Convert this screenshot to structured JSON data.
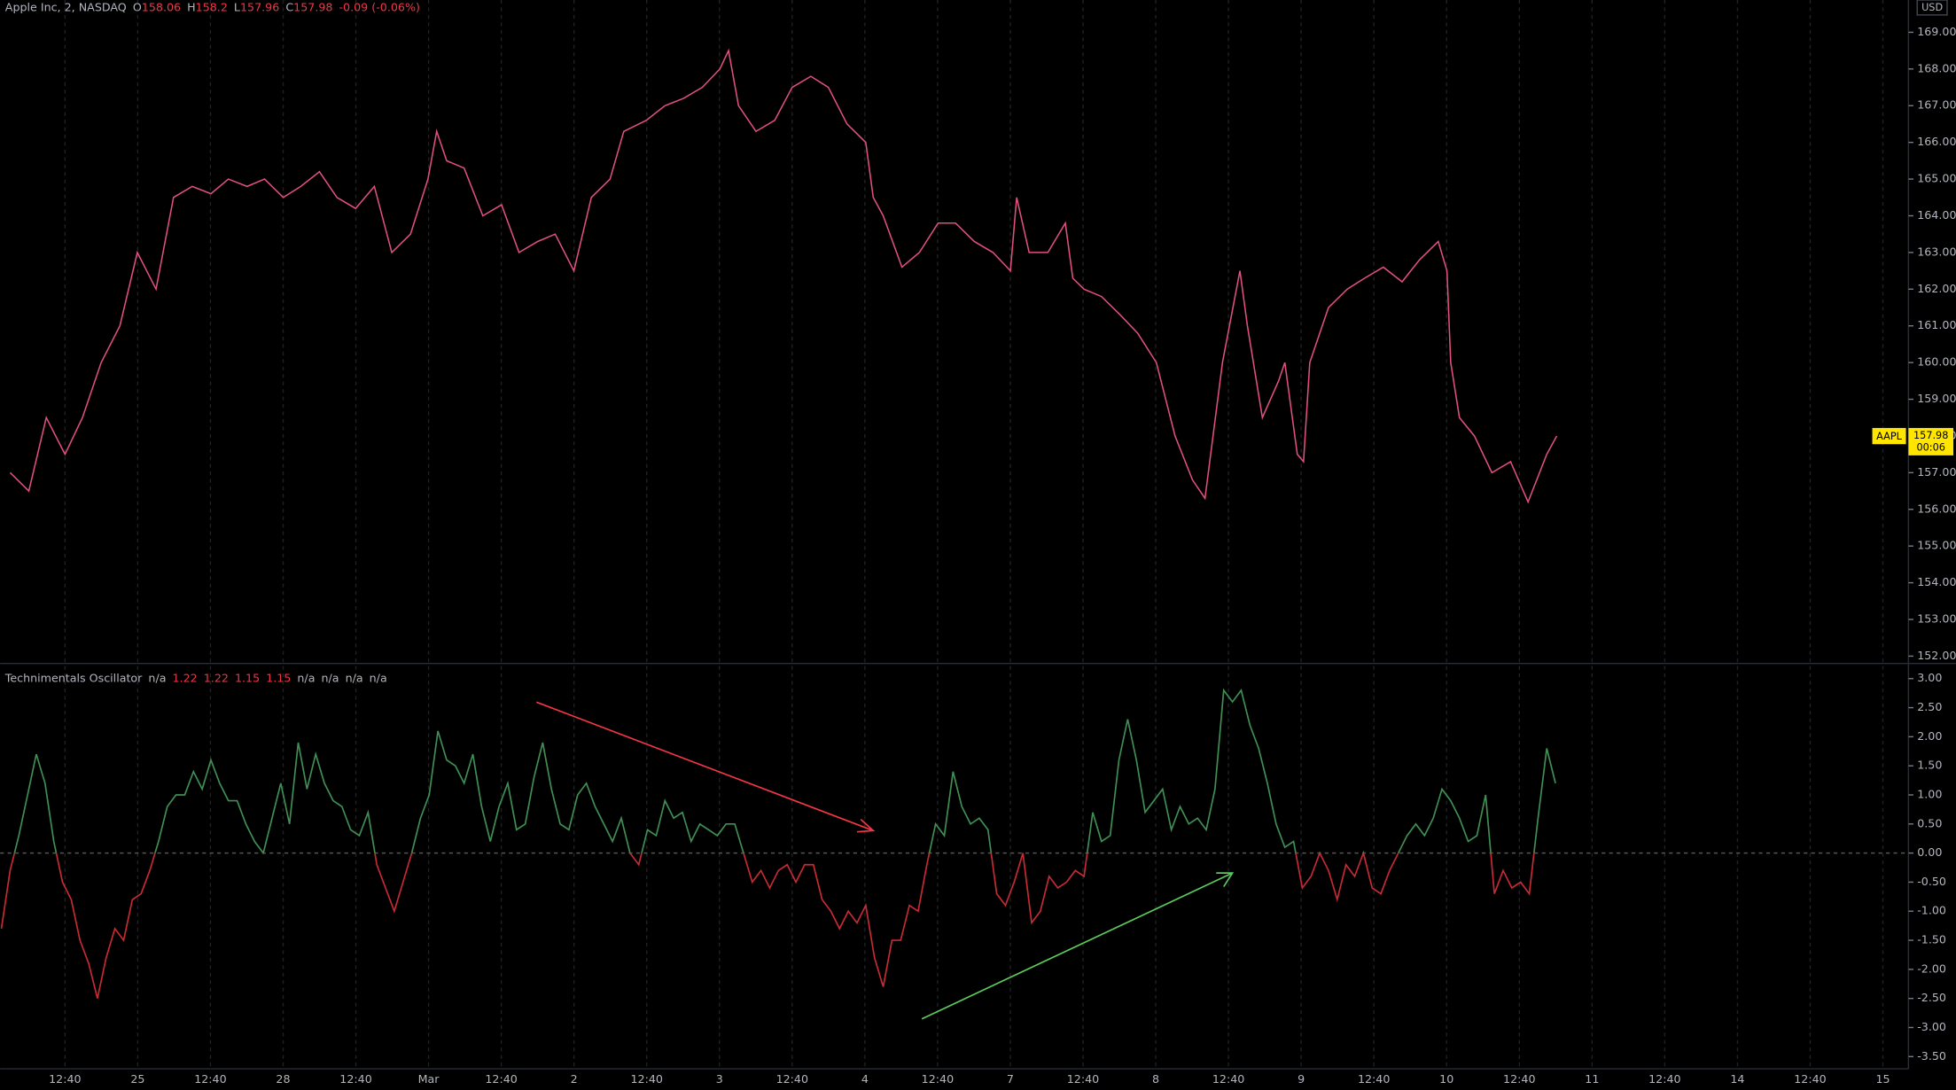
{
  "chart_data": [
    {
      "type": "line",
      "title": "Apple Inc, 2, NASDAQ",
      "ohlc": [
        {
          "label": "O",
          "value": 158.06
        },
        {
          "label": "H",
          "value": 158.2
        },
        {
          "label": "L",
          "value": 157.96
        },
        {
          "label": "C",
          "value": 157.98
        }
      ],
      "change": "-0.09 (-0.06%)",
      "currency": "USD",
      "symbol": "AAPL",
      "countdown": "00:06",
      "color": "#e0507f",
      "xlim": [
        0,
        1530
      ],
      "ylim": [
        151.8,
        169.88
      ],
      "yticks": [
        {
          "value": 152,
          "label": "152.00"
        },
        {
          "value": 153,
          "label": "153.00"
        },
        {
          "value": 154,
          "label": "154.00"
        },
        {
          "value": 155,
          "label": "155.00"
        },
        {
          "value": 156,
          "label": "156.00"
        },
        {
          "value": 157,
          "label": "157.00"
        },
        {
          "value": 158,
          "label": "158.00"
        },
        {
          "value": 159,
          "label": "159.00"
        },
        {
          "value": 160,
          "label": "160.00"
        },
        {
          "value": 161,
          "label": "161.00"
        },
        {
          "value": 162,
          "label": "162.00"
        },
        {
          "value": 163,
          "label": "163.00"
        },
        {
          "value": 164,
          "label": "164.00"
        },
        {
          "value": 165,
          "label": "165.00"
        },
        {
          "value": 166,
          "label": "166.00"
        },
        {
          "value": 167,
          "label": "167.00"
        },
        {
          "value": 168,
          "label": "168.00"
        },
        {
          "value": 169,
          "label": "169.00"
        }
      ],
      "x": [
        8,
        23,
        37,
        52,
        66,
        81,
        96,
        110,
        125,
        139,
        154,
        169,
        183,
        198,
        212,
        227,
        241,
        256,
        270,
        285,
        300,
        314,
        329,
        343,
        350,
        358,
        372,
        387,
        402,
        416,
        431,
        445,
        460,
        474,
        489,
        500,
        518,
        533,
        548,
        563,
        577,
        584,
        592,
        606,
        621,
        635,
        650,
        664,
        679,
        694,
        700,
        708,
        723,
        737,
        752,
        766,
        781,
        796,
        810,
        815,
        825,
        840,
        854,
        860,
        869,
        883,
        898,
        912,
        927,
        942,
        956,
        966,
        980,
        994,
        1000,
        1012,
        1025,
        1030,
        1040,
        1045,
        1050,
        1065,
        1080,
        1094,
        1109,
        1124,
        1138,
        1153,
        1160,
        1163,
        1170,
        1182,
        1196,
        1211,
        1225,
        1240,
        1248
      ],
      "values": [
        157,
        156.5,
        158.5,
        157.5,
        158.5,
        160,
        161,
        163,
        162,
        164.5,
        164.8,
        164.6,
        165,
        164.8,
        165,
        164.5,
        164.8,
        165.2,
        164.5,
        164.2,
        164.8,
        163,
        163.5,
        165,
        166.3,
        165.5,
        165.3,
        164,
        164.3,
        163,
        163.3,
        163.5,
        162.5,
        164.5,
        165,
        166.3,
        166.6,
        167,
        167.2,
        167.5,
        168,
        168.5,
        167,
        166.3,
        166.6,
        167.5,
        167.8,
        167.5,
        166.5,
        166,
        164.5,
        164,
        162.6,
        163,
        163.8,
        163.8,
        163.3,
        163,
        162.5,
        164.5,
        163,
        163,
        163.8,
        162.3,
        162,
        161.8,
        161.3,
        160.8,
        160,
        158,
        156.8,
        156.3,
        160,
        162.5,
        161,
        158.5,
        159.5,
        160,
        157.5,
        157.3,
        160,
        161.5,
        162,
        162.3,
        162.6,
        162.2,
        162.8,
        163.3,
        162.5,
        160,
        158.5,
        158,
        157,
        157.3,
        156.2,
        157.5,
        158
      ]
    },
    {
      "type": "oscillator",
      "title": "Technimentals Oscillator",
      "legend_values": [
        "n/a",
        1.22,
        1.22,
        1.15,
        1.15,
        "n/a",
        "n/a",
        "n/a",
        "n/a"
      ],
      "up_color": "#3f8f55",
      "down_color": "#c62a35",
      "zero_line": 0,
      "xlim": [
        0,
        1530
      ],
      "ylim": [
        -3.71,
        3.26
      ],
      "xticks": [
        {
          "value": 52,
          "label": "12:40"
        },
        {
          "value": 110.3,
          "label": "25"
        },
        {
          "value": 168.6,
          "label": "12:40"
        },
        {
          "value": 226.9,
          "label": "28"
        },
        {
          "value": 285.2,
          "label": "12:40"
        },
        {
          "value": 343.5,
          "label": "Mar"
        },
        {
          "value": 401.8,
          "label": "12:40"
        },
        {
          "value": 460.1,
          "label": "2"
        },
        {
          "value": 518.4,
          "label": "12:40"
        },
        {
          "value": 576.7,
          "label": "3"
        },
        {
          "value": 635,
          "label": "12:40"
        },
        {
          "value": 693.3,
          "label": "4"
        },
        {
          "value": 751.6,
          "label": "12:40"
        },
        {
          "value": 809.9,
          "label": "7"
        },
        {
          "value": 868.2,
          "label": "12:40"
        },
        {
          "value": 926.5,
          "label": "8"
        },
        {
          "value": 984.8,
          "label": "12:40"
        },
        {
          "value": 1043.1,
          "label": "9"
        },
        {
          "value": 1101.4,
          "label": "12:40"
        },
        {
          "value": 1159.7,
          "label": "10"
        },
        {
          "value": 1218,
          "label": "12:40"
        },
        {
          "value": 1276.3,
          "label": "11"
        },
        {
          "value": 1334.6,
          "label": "12:40"
        },
        {
          "value": 1392.9,
          "label": "14"
        },
        {
          "value": 1451.2,
          "label": "12:40"
        },
        {
          "value": 1509.5,
          "label": "15"
        }
      ],
      "yticks": [
        {
          "value": 3,
          "label": "3.00"
        },
        {
          "value": 2.5,
          "label": "2.50"
        },
        {
          "value": 2,
          "label": "2.00"
        },
        {
          "value": 1.5,
          "label": "1.50"
        },
        {
          "value": 1,
          "label": "1.00"
        },
        {
          "value": 0.5,
          "label": "0.50"
        },
        {
          "value": 0,
          "label": "0.00"
        },
        {
          "value": -0.5,
          "label": "-0.50"
        },
        {
          "value": -1,
          "label": "-1.00"
        },
        {
          "value": -1.5,
          "label": "-1.50"
        },
        {
          "value": -2,
          "label": "-2.00"
        },
        {
          "value": -2.5,
          "label": "-2.50"
        },
        {
          "value": -3,
          "label": "-3.00"
        },
        {
          "value": -3.5,
          "label": "-3.50"
        }
      ],
      "x": [
        1,
        8,
        15,
        22,
        29,
        36,
        43,
        50,
        57,
        64,
        71,
        78,
        85,
        92,
        99,
        106,
        113,
        120,
        127,
        134,
        141,
        148,
        155,
        162,
        169,
        176,
        183,
        190,
        197,
        204,
        211,
        218,
        225,
        232,
        239,
        246,
        253,
        260,
        267,
        274,
        281,
        288,
        295,
        302,
        309,
        316,
        323,
        330,
        337,
        344,
        351,
        358,
        365,
        372,
        379,
        386,
        393,
        400,
        407,
        414,
        421,
        428,
        435,
        442,
        449,
        456,
        463,
        470,
        477,
        484,
        491,
        498,
        505,
        512,
        519,
        526,
        533,
        540,
        547,
        554,
        561,
        568,
        575,
        582,
        589,
        596,
        603,
        610,
        617,
        624,
        631,
        638,
        645,
        652,
        659,
        666,
        673,
        680,
        687,
        694,
        701,
        708,
        715,
        722,
        729,
        736,
        743,
        750,
        757,
        764,
        771,
        778,
        785,
        792,
        799,
        806,
        813,
        820,
        827,
        834,
        841,
        848,
        855,
        862,
        869,
        876,
        883,
        890,
        897,
        904,
        911,
        918,
        925,
        932,
        939,
        946,
        953,
        960,
        967,
        974,
        981,
        988,
        995,
        1002,
        1009,
        1016,
        1023,
        1030,
        1037,
        1044,
        1051,
        1058,
        1065,
        1072,
        1079,
        1086,
        1093,
        1100,
        1107,
        1114,
        1121,
        1128,
        1135,
        1142,
        1149,
        1156,
        1163,
        1170,
        1177,
        1184,
        1191,
        1198,
        1205,
        1212,
        1219,
        1226,
        1233,
        1240,
        1247
      ],
      "values": [
        -1.3,
        -0.3,
        0.3,
        1.0,
        1.7,
        1.2,
        0.2,
        -0.5,
        -0.8,
        -1.5,
        -1.9,
        -2.5,
        -1.8,
        -1.3,
        -1.5,
        -0.8,
        -0.7,
        -0.3,
        0.2,
        0.8,
        1.0,
        1.0,
        1.4,
        1.1,
        1.6,
        1.2,
        0.9,
        0.9,
        0.5,
        0.2,
        0.0,
        0.6,
        1.2,
        0.5,
        1.9,
        1.1,
        1.7,
        1.2,
        0.9,
        0.8,
        0.4,
        0.3,
        0.7,
        -0.2,
        -0.6,
        -1.0,
        -0.5,
        0.0,
        0.6,
        1.0,
        2.1,
        1.6,
        1.5,
        1.2,
        1.7,
        0.8,
        0.2,
        0.8,
        1.2,
        0.4,
        0.5,
        1.3,
        1.9,
        1.1,
        0.5,
        0.4,
        1.0,
        1.2,
        0.8,
        0.5,
        0.2,
        0.6,
        0.0,
        -0.2,
        0.4,
        0.3,
        0.9,
        0.6,
        0.7,
        0.2,
        0.5,
        0.4,
        0.3,
        0.5,
        0.5,
        0.0,
        -0.5,
        -0.3,
        -0.6,
        -0.3,
        -0.2,
        -0.5,
        -0.2,
        -0.2,
        -0.8,
        -1.0,
        -1.3,
        -1.0,
        -1.2,
        -0.9,
        -1.8,
        -2.3,
        -1.5,
        -1.5,
        -0.9,
        -1.0,
        -0.2,
        0.5,
        0.3,
        1.4,
        0.8,
        0.5,
        0.6,
        0.4,
        -0.7,
        -0.9,
        -0.5,
        0.0,
        -1.2,
        -1.0,
        -0.4,
        -0.6,
        -0.5,
        -0.3,
        -0.4,
        0.7,
        0.2,
        0.3,
        1.6,
        2.3,
        1.6,
        0.7,
        0.9,
        1.1,
        0.4,
        0.8,
        0.5,
        0.6,
        0.4,
        1.1,
        2.8,
        2.6,
        2.8,
        2.2,
        1.8,
        1.2,
        0.5,
        0.1,
        0.2,
        -0.6,
        -0.4,
        0.0,
        -0.3,
        -0.8,
        -0.2,
        -0.4,
        0.0,
        -0.6,
        -0.7,
        -0.3,
        0.0,
        0.3,
        0.5,
        0.3,
        0.6,
        1.1,
        0.9,
        0.6,
        0.2,
        0.3,
        1.0,
        -0.7,
        -0.3,
        -0.6,
        -0.5,
        -0.7,
        0.6,
        1.8,
        1.2
      ]
    }
  ]
}
